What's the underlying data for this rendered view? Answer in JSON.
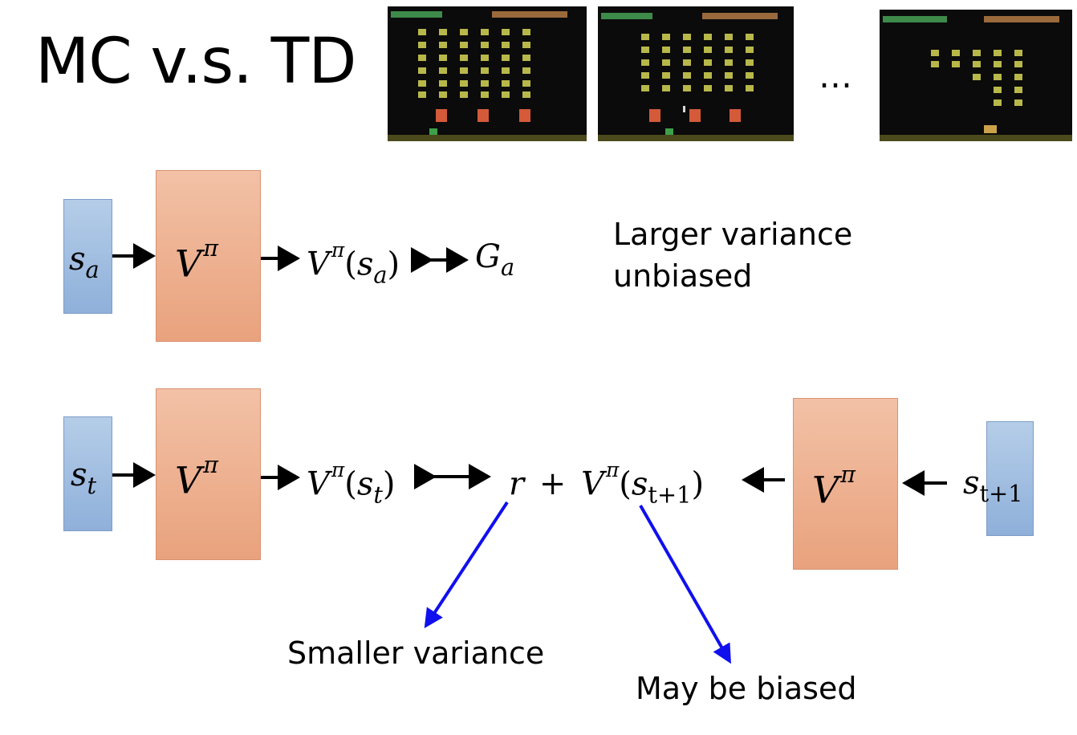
{
  "title": "MC v.s. TD",
  "ellipsis": "…",
  "mc": {
    "state": "s",
    "state_sub": "a",
    "net": "V",
    "net_sup": "π",
    "value": "V",
    "value_sup": "π",
    "value_arg": "s",
    "value_arg_sub": "a",
    "target": "G",
    "target_sub": "a",
    "note_line1": "Larger variance",
    "note_line2": "unbiased"
  },
  "td": {
    "state": "s",
    "state_sub": "t",
    "net": "V",
    "net_sup": "π",
    "value": "V",
    "value_sup": "π",
    "value_arg": "s",
    "value_arg_sub": "t",
    "reward": "r",
    "plus": "+",
    "next_value": "V",
    "next_value_sup": "π",
    "next_arg": "s",
    "next_arg_sub": "t+1",
    "net2": "V",
    "net2_sup": "π",
    "next_state": "s",
    "next_state_sub": "t+1",
    "note_reward": "Smaller variance",
    "note_next": "May be biased"
  },
  "colors": {
    "state_box": "#a3bfe2",
    "net_box": "#eeb08f",
    "blue_arrow": "#1010ee"
  }
}
